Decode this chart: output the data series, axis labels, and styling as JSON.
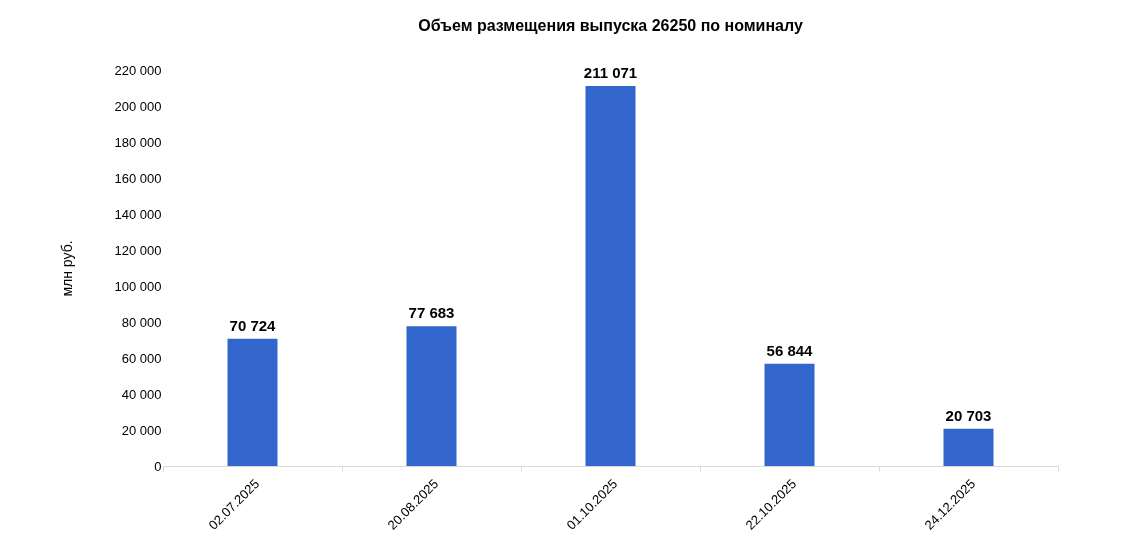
{
  "chart_data": {
    "type": "bar",
    "title": "Объем размещения выпуска 26250 по номиналу",
    "ylabel": "млн руб.",
    "categories": [
      "02.07.2025",
      "20.08.2025",
      "01.10.2025",
      "22.10.2025",
      "24.12.2025"
    ],
    "values": [
      70724,
      77683,
      211071,
      56844,
      20703
    ],
    "value_labels": [
      "70 724",
      "77 683",
      "211 071",
      "56 844",
      "20 703"
    ],
    "color": "#3366cc",
    "ylim": [
      0,
      220000
    ],
    "yticks": [
      {
        "value": 0,
        "label": "0"
      },
      {
        "value": 20000,
        "label": "20 000"
      },
      {
        "value": 40000,
        "label": "40 000"
      },
      {
        "value": 60000,
        "label": "60 000"
      },
      {
        "value": 80000,
        "label": "80 000"
      },
      {
        "value": 100000,
        "label": "100 000"
      },
      {
        "value": 120000,
        "label": "120 000"
      },
      {
        "value": 140000,
        "label": "140 000"
      },
      {
        "value": 160000,
        "label": "160 000"
      },
      {
        "value": 180000,
        "label": "180 000"
      },
      {
        "value": 200000,
        "label": "200 000"
      },
      {
        "value": 220000,
        "label": "220 000"
      }
    ],
    "grid": false
  }
}
